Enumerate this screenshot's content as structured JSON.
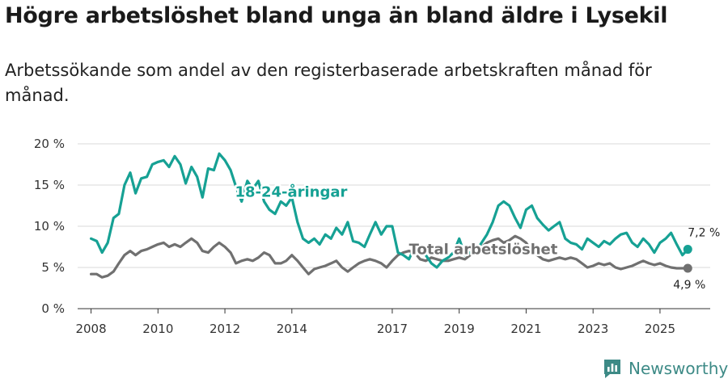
{
  "title": "Högre arbetslöshet bland unga än bland äldre i Lysekil",
  "subtitle": "Arbetssökande som andel av den registerbaserade arbetskraften månad för månad.",
  "brand": "Newsworthy",
  "colors": {
    "youth": "#16a194",
    "total": "#707070",
    "grid": "#d9d9d9",
    "brand": "#3d8a86"
  },
  "chart_data": {
    "type": "line",
    "title": "Högre arbetslöshet bland unga än bland äldre i Lysekil",
    "ylim": [
      0,
      20
    ],
    "yticks": [
      0,
      5,
      10,
      15,
      20
    ],
    "ytick_labels": [
      "0 %",
      "5 %",
      "10 %",
      "15 %",
      "20 %"
    ],
    "xlim": [
      2007.6,
      2026.5
    ],
    "xticks": [
      2008,
      2010,
      2012,
      2014,
      2017,
      2019,
      2021,
      2023,
      2025
    ],
    "xtick_labels": [
      "2008",
      "2010",
      "2012",
      "2014",
      "2017",
      "2019",
      "2021",
      "2023",
      "2025"
    ],
    "series": [
      {
        "name": "18-24-åringar",
        "label": "18-24-åringar",
        "color": "#16a194",
        "end_label": "7,2 %",
        "x": [
          2008.0,
          2008.17,
          2008.33,
          2008.5,
          2008.67,
          2008.83,
          2009.0,
          2009.17,
          2009.33,
          2009.5,
          2009.67,
          2009.83,
          2010.0,
          2010.17,
          2010.33,
          2010.5,
          2010.67,
          2010.83,
          2011.0,
          2011.17,
          2011.33,
          2011.5,
          2011.67,
          2011.83,
          2012.0,
          2012.17,
          2012.33,
          2012.5,
          2012.67,
          2012.83,
          2013.0,
          2013.17,
          2013.33,
          2013.5,
          2013.67,
          2013.83,
          2014.0,
          2014.17,
          2014.33,
          2014.5,
          2014.67,
          2014.83,
          2015.0,
          2015.17,
          2015.33,
          2015.5,
          2015.67,
          2015.83,
          2016.0,
          2016.17,
          2016.33,
          2016.5,
          2016.67,
          2016.83,
          2017.0,
          2017.17,
          2017.33,
          2017.5,
          2017.67,
          2017.83,
          2018.0,
          2018.17,
          2018.33,
          2018.5,
          2018.67,
          2018.83,
          2019.0,
          2019.17,
          2019.33,
          2019.5,
          2019.67,
          2019.83,
          2020.0,
          2020.17,
          2020.33,
          2020.5,
          2020.67,
          2020.83,
          2021.0,
          2021.17,
          2021.33,
          2021.5,
          2021.67,
          2021.83,
          2022.0,
          2022.17,
          2022.33,
          2022.5,
          2022.67,
          2022.83,
          2023.0,
          2023.17,
          2023.33,
          2023.5,
          2023.67,
          2023.83,
          2024.0,
          2024.17,
          2024.33,
          2024.5,
          2024.67,
          2024.83,
          2025.0,
          2025.17,
          2025.33,
          2025.5,
          2025.67,
          2025.83
        ],
        "values": [
          8.5,
          8.2,
          6.8,
          8.0,
          11.0,
          11.5,
          15.0,
          16.5,
          14.0,
          15.8,
          16.0,
          17.5,
          17.8,
          18.0,
          17.2,
          18.5,
          17.5,
          15.2,
          17.2,
          16.0,
          13.5,
          17.0,
          16.8,
          18.8,
          18.0,
          16.8,
          14.8,
          13.0,
          15.5,
          14.5,
          15.5,
          13.0,
          12.0,
          11.5,
          13.0,
          12.5,
          13.5,
          10.5,
          8.5,
          8.0,
          8.5,
          7.8,
          9.0,
          8.5,
          9.8,
          9.0,
          10.5,
          8.2,
          8.0,
          7.5,
          9.0,
          10.5,
          9.0,
          10.0,
          10.0,
          6.8,
          6.5,
          6.0,
          7.5,
          7.2,
          6.5,
          5.5,
          5.0,
          5.8,
          6.2,
          6.8,
          8.5,
          6.5,
          6.8,
          7.0,
          8.0,
          9.0,
          10.5,
          12.5,
          13.0,
          12.5,
          11.0,
          9.8,
          12.0,
          12.5,
          11.0,
          10.2,
          9.5,
          10.0,
          10.5,
          8.5,
          8.0,
          7.8,
          7.2,
          8.5,
          8.0,
          7.5,
          8.2,
          7.8,
          8.5,
          9.0,
          9.2,
          8.0,
          7.5,
          8.5,
          7.8,
          6.8,
          8.0,
          8.5,
          9.2,
          7.8,
          6.5,
          7.2
        ]
      },
      {
        "name": "Total arbetslöshet",
        "label": "Total arbetslöshet",
        "color": "#707070",
        "end_label": "4,9 %",
        "x": [
          2008.0,
          2008.17,
          2008.33,
          2008.5,
          2008.67,
          2008.83,
          2009.0,
          2009.17,
          2009.33,
          2009.5,
          2009.67,
          2009.83,
          2010.0,
          2010.17,
          2010.33,
          2010.5,
          2010.67,
          2010.83,
          2011.0,
          2011.17,
          2011.33,
          2011.5,
          2011.67,
          2011.83,
          2012.0,
          2012.17,
          2012.33,
          2012.5,
          2012.67,
          2012.83,
          2013.0,
          2013.17,
          2013.33,
          2013.5,
          2013.67,
          2013.83,
          2014.0,
          2014.17,
          2014.33,
          2014.5,
          2014.67,
          2014.83,
          2015.0,
          2015.17,
          2015.33,
          2015.5,
          2015.67,
          2015.83,
          2016.0,
          2016.17,
          2016.33,
          2016.5,
          2016.67,
          2016.83,
          2017.0,
          2017.17,
          2017.33,
          2017.5,
          2017.67,
          2017.83,
          2018.0,
          2018.17,
          2018.33,
          2018.5,
          2018.67,
          2018.83,
          2019.0,
          2019.17,
          2019.33,
          2019.5,
          2019.67,
          2019.83,
          2020.0,
          2020.17,
          2020.33,
          2020.5,
          2020.67,
          2020.83,
          2021.0,
          2021.17,
          2021.33,
          2021.5,
          2021.67,
          2021.83,
          2022.0,
          2022.17,
          2022.33,
          2022.5,
          2022.67,
          2022.83,
          2023.0,
          2023.17,
          2023.33,
          2023.5,
          2023.67,
          2023.83,
          2024.0,
          2024.17,
          2024.33,
          2024.5,
          2024.67,
          2024.83,
          2025.0,
          2025.17,
          2025.33,
          2025.5,
          2025.67,
          2025.83
        ],
        "values": [
          4.2,
          4.2,
          3.8,
          4.0,
          4.5,
          5.5,
          6.5,
          7.0,
          6.5,
          7.0,
          7.2,
          7.5,
          7.8,
          8.0,
          7.5,
          7.8,
          7.5,
          8.0,
          8.5,
          8.0,
          7.0,
          6.8,
          7.5,
          8.0,
          7.5,
          6.8,
          5.5,
          5.8,
          6.0,
          5.8,
          6.2,
          6.8,
          6.5,
          5.5,
          5.5,
          5.8,
          6.5,
          5.8,
          5.0,
          4.2,
          4.8,
          5.0,
          5.2,
          5.5,
          5.8,
          5.0,
          4.5,
          5.0,
          5.5,
          5.8,
          6.0,
          5.8,
          5.5,
          5.0,
          5.8,
          6.5,
          6.8,
          7.0,
          6.8,
          6.0,
          5.8,
          6.2,
          6.0,
          5.8,
          5.8,
          6.0,
          6.2,
          6.0,
          6.5,
          7.0,
          7.5,
          8.0,
          8.3,
          8.5,
          8.0,
          8.3,
          8.8,
          8.5,
          8.0,
          7.0,
          6.5,
          6.0,
          5.8,
          6.0,
          6.2,
          6.0,
          6.2,
          6.0,
          5.5,
          5.0,
          5.2,
          5.5,
          5.3,
          5.5,
          5.0,
          4.8,
          5.0,
          5.2,
          5.5,
          5.8,
          5.5,
          5.3,
          5.5,
          5.2,
          5.0,
          4.9,
          4.9,
          4.9
        ]
      }
    ]
  }
}
